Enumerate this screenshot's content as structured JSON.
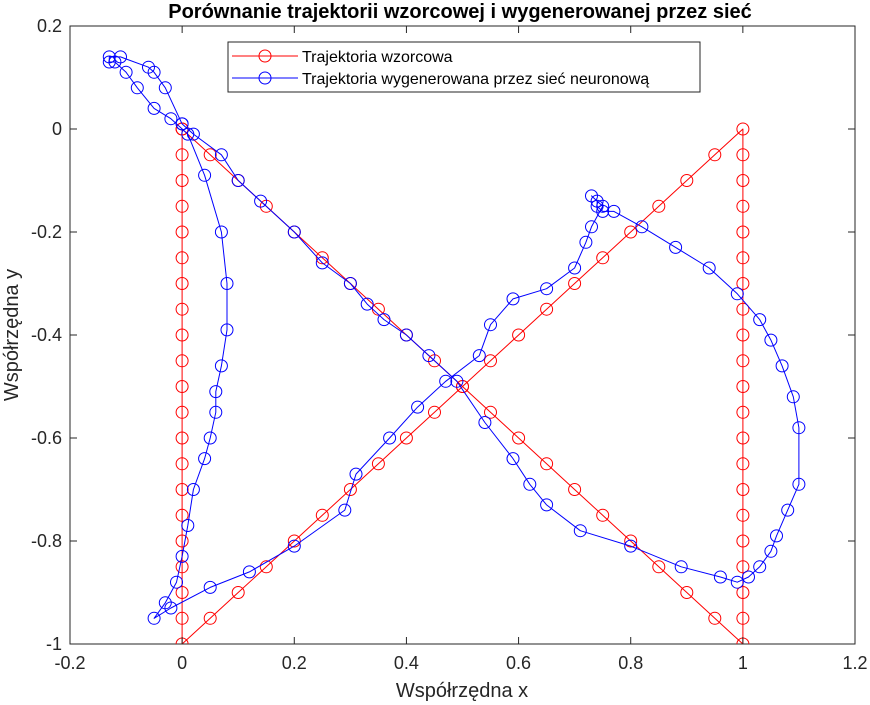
{
  "chart_data": {
    "type": "line",
    "title": "Porównanie trajektorii wzorcowej i wygenerowanej przez sieć",
    "xlabel": "Współrzędna x",
    "ylabel": "Współrzędna y",
    "xlim": [
      -0.2,
      1.2
    ],
    "ylim": [
      -1,
      0.2
    ],
    "x_ticks": [
      "-0.2",
      "0",
      "0.2",
      "0.4",
      "0.6",
      "0.8",
      "1",
      "1.2"
    ],
    "y_ticks": [
      "-1",
      "-0.8",
      "-0.6",
      "-0.4",
      "-0.2",
      "0",
      "0.2"
    ],
    "grid": false,
    "legend_position": "top",
    "series": [
      {
        "name": "Trajektoria wzorcowa",
        "color": "#ff0000",
        "marker": "circle",
        "points": [
          [
            0,
            0
          ],
          [
            0.05,
            -0.05
          ],
          [
            0.1,
            -0.1
          ],
          [
            0.15,
            -0.15
          ],
          [
            0.2,
            -0.2
          ],
          [
            0.25,
            -0.25
          ],
          [
            0.3,
            -0.3
          ],
          [
            0.35,
            -0.35
          ],
          [
            0.4,
            -0.4
          ],
          [
            0.45,
            -0.45
          ],
          [
            0.5,
            -0.5
          ],
          [
            0.55,
            -0.55
          ],
          [
            0.6,
            -0.6
          ],
          [
            0.65,
            -0.65
          ],
          [
            0.7,
            -0.7
          ],
          [
            0.75,
            -0.75
          ],
          [
            0.8,
            -0.8
          ],
          [
            0.85,
            -0.85
          ],
          [
            0.9,
            -0.9
          ],
          [
            0.95,
            -0.95
          ],
          [
            1,
            -1
          ],
          [
            1,
            -0.95
          ],
          [
            1,
            -0.9
          ],
          [
            1,
            -0.85
          ],
          [
            1,
            -0.8
          ],
          [
            1,
            -0.75
          ],
          [
            1,
            -0.7
          ],
          [
            1,
            -0.65
          ],
          [
            1,
            -0.6
          ],
          [
            1,
            -0.55
          ],
          [
            1,
            -0.5
          ],
          [
            1,
            -0.45
          ],
          [
            1,
            -0.4
          ],
          [
            1,
            -0.35
          ],
          [
            1,
            -0.3
          ],
          [
            1,
            -0.25
          ],
          [
            1,
            -0.2
          ],
          [
            1,
            -0.15
          ],
          [
            1,
            -0.1
          ],
          [
            1,
            -0.05
          ],
          [
            1,
            0
          ],
          [
            0.95,
            -0.05
          ],
          [
            0.9,
            -0.1
          ],
          [
            0.85,
            -0.15
          ],
          [
            0.8,
            -0.2
          ],
          [
            0.75,
            -0.25
          ],
          [
            0.7,
            -0.3
          ],
          [
            0.65,
            -0.35
          ],
          [
            0.6,
            -0.4
          ],
          [
            0.55,
            -0.45
          ],
          [
            0.5,
            -0.5
          ],
          [
            0.45,
            -0.55
          ],
          [
            0.4,
            -0.6
          ],
          [
            0.35,
            -0.65
          ],
          [
            0.3,
            -0.7
          ],
          [
            0.25,
            -0.75
          ],
          [
            0.2,
            -0.8
          ],
          [
            0.15,
            -0.85
          ],
          [
            0.1,
            -0.9
          ],
          [
            0.05,
            -0.95
          ],
          [
            0,
            -1
          ],
          [
            0,
            -0.95
          ],
          [
            0,
            -0.9
          ],
          [
            0,
            -0.85
          ],
          [
            0,
            -0.8
          ],
          [
            0,
            -0.75
          ],
          [
            0,
            -0.7
          ],
          [
            0,
            -0.65
          ],
          [
            0,
            -0.6
          ],
          [
            0,
            -0.55
          ],
          [
            0,
            -0.5
          ],
          [
            0,
            -0.45
          ],
          [
            0,
            -0.4
          ],
          [
            0,
            -0.35
          ],
          [
            0,
            -0.3
          ],
          [
            0,
            -0.25
          ],
          [
            0,
            -0.2
          ],
          [
            0,
            -0.15
          ],
          [
            0,
            -0.1
          ],
          [
            0,
            -0.05
          ],
          [
            0,
            0
          ]
        ]
      },
      {
        "name": "Trajektoria wygenerowana przez sieć neuronową",
        "color": "#0000ff",
        "marker": "circle",
        "points": [
          [
            0,
            0.01
          ],
          [
            0.02,
            -0.01
          ],
          [
            0.07,
            -0.05
          ],
          [
            0.1,
            -0.1
          ],
          [
            0.14,
            -0.14
          ],
          [
            0.2,
            -0.2
          ],
          [
            0.25,
            -0.26
          ],
          [
            0.3,
            -0.3
          ],
          [
            0.33,
            -0.34
          ],
          [
            0.36,
            -0.37
          ],
          [
            0.4,
            -0.4
          ],
          [
            0.44,
            -0.44
          ],
          [
            0.49,
            -0.49
          ],
          [
            0.54,
            -0.57
          ],
          [
            0.59,
            -0.64
          ],
          [
            0.62,
            -0.69
          ],
          [
            0.65,
            -0.73
          ],
          [
            0.71,
            -0.78
          ],
          [
            0.8,
            -0.81
          ],
          [
            0.89,
            -0.85
          ],
          [
            0.96,
            -0.87
          ],
          [
            0.99,
            -0.88
          ],
          [
            1.01,
            -0.87
          ],
          [
            1.03,
            -0.85
          ],
          [
            1.05,
            -0.82
          ],
          [
            1.06,
            -0.79
          ],
          [
            1.08,
            -0.74
          ],
          [
            1.1,
            -0.69
          ],
          [
            1.1,
            -0.58
          ],
          [
            1.09,
            -0.52
          ],
          [
            1.07,
            -0.46
          ],
          [
            1.05,
            -0.41
          ],
          [
            1.03,
            -0.37
          ],
          [
            0.99,
            -0.32
          ],
          [
            0.94,
            -0.27
          ],
          [
            0.88,
            -0.23
          ],
          [
            0.82,
            -0.19
          ],
          [
            0.77,
            -0.16
          ],
          [
            0.75,
            -0.16
          ],
          [
            0.74,
            -0.15
          ],
          [
            0.74,
            -0.14
          ],
          [
            0.73,
            -0.13
          ],
          [
            0.75,
            -0.15
          ],
          [
            0.73,
            -0.19
          ],
          [
            0.72,
            -0.22
          ],
          [
            0.7,
            -0.27
          ],
          [
            0.65,
            -0.31
          ],
          [
            0.59,
            -0.33
          ],
          [
            0.55,
            -0.38
          ],
          [
            0.53,
            -0.44
          ],
          [
            0.47,
            -0.49
          ],
          [
            0.42,
            -0.54
          ],
          [
            0.37,
            -0.6
          ],
          [
            0.31,
            -0.67
          ],
          [
            0.29,
            -0.74
          ],
          [
            0.2,
            -0.81
          ],
          [
            0.12,
            -0.86
          ],
          [
            0.05,
            -0.89
          ],
          [
            -0.02,
            -0.93
          ],
          [
            -0.05,
            -0.95
          ],
          [
            -0.03,
            -0.92
          ],
          [
            -0.01,
            -0.88
          ],
          [
            0,
            -0.83
          ],
          [
            0.01,
            -0.77
          ],
          [
            0.02,
            -0.7
          ],
          [
            0.04,
            -0.64
          ],
          [
            0.05,
            -0.6
          ],
          [
            0.06,
            -0.55
          ],
          [
            0.06,
            -0.51
          ],
          [
            0.07,
            -0.46
          ],
          [
            0.08,
            -0.39
          ],
          [
            0.08,
            -0.3
          ],
          [
            0.07,
            -0.2
          ],
          [
            0.04,
            -0.09
          ],
          [
            0.01,
            -0.01
          ],
          [
            -0.02,
            0.02
          ],
          [
            -0.05,
            0.04
          ],
          [
            -0.08,
            0.08
          ],
          [
            -0.1,
            0.11
          ],
          [
            -0.12,
            0.13
          ],
          [
            -0.13,
            0.13
          ],
          [
            -0.13,
            0.14
          ],
          [
            -0.11,
            0.14
          ],
          [
            -0.06,
            0.12
          ],
          [
            -0.05,
            0.11
          ],
          [
            -0.03,
            0.08
          ],
          [
            0,
            0.01
          ]
        ]
      }
    ]
  }
}
